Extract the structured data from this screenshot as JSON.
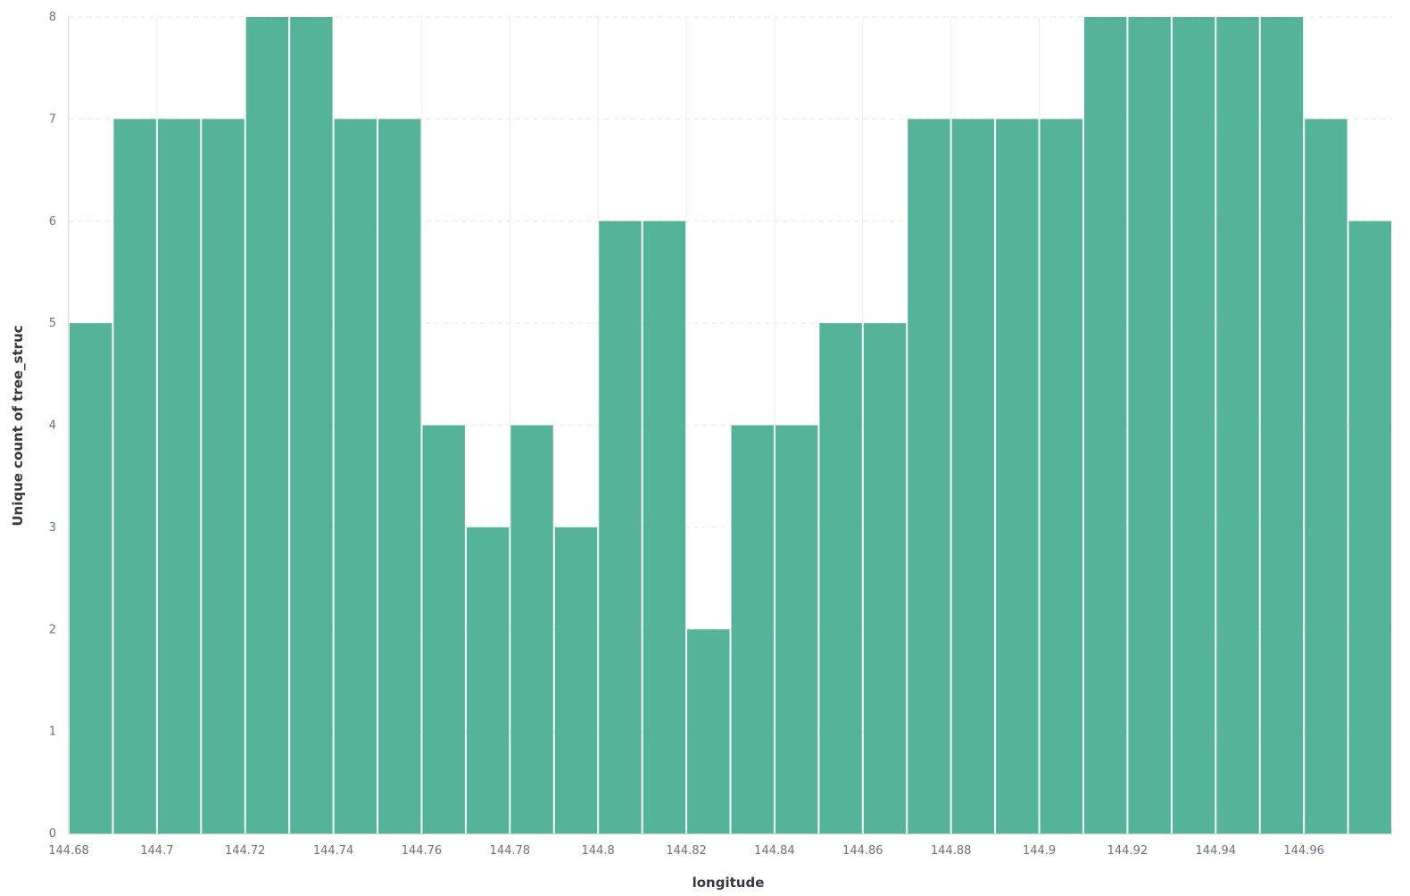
{
  "colors": {
    "bar": "#54b399",
    "grid_horizontal": "#eef0f3",
    "grid_vertical": "#eef0f3",
    "axis_line": "#d3dae6",
    "tick_text": "#69707d",
    "axis_title": "#343741"
  },
  "chart_data": {
    "type": "bar",
    "title": "",
    "xlabel": "longitude",
    "ylabel": "Unique count of tree_struc",
    "bin_width": 0.01,
    "x": [
      144.68,
      144.69,
      144.7,
      144.71,
      144.72,
      144.73,
      144.74,
      144.75,
      144.76,
      144.77,
      144.78,
      144.79,
      144.8,
      144.81,
      144.82,
      144.83,
      144.84,
      144.85,
      144.86,
      144.87,
      144.88,
      144.89,
      144.9,
      144.91,
      144.92,
      144.93,
      144.94,
      144.95,
      144.96,
      144.97
    ],
    "values": [
      5,
      7,
      7,
      7,
      8,
      8,
      7,
      7,
      4,
      3,
      4,
      3,
      6,
      6,
      2,
      4,
      4,
      5,
      5,
      7,
      7,
      7,
      7,
      8,
      8,
      8,
      8,
      8,
      7,
      6
    ],
    "xlim": [
      144.68,
      144.98
    ],
    "ylim": [
      0,
      8
    ],
    "x_ticks": [
      "144.68",
      "144.7",
      "144.72",
      "144.74",
      "144.76",
      "144.78",
      "144.8",
      "144.82",
      "144.84",
      "144.86",
      "144.88",
      "144.9",
      "144.92",
      "144.94",
      "144.96"
    ],
    "y_ticks": [
      "0",
      "1",
      "2",
      "3",
      "4",
      "5",
      "6",
      "7",
      "8"
    ],
    "grid": true,
    "legend": "none"
  }
}
